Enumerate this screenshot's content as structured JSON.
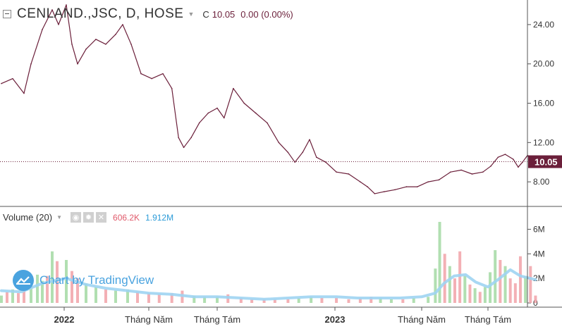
{
  "header": {
    "symbol": "CENLAND.,JSC, D, HOSE",
    "close_label": "C",
    "close_value": "10.05",
    "change": "0.00 (0.00%)"
  },
  "volume_header": {
    "label": "Volume (20)",
    "current_volume": "606.2K",
    "ma_volume": "1.912M"
  },
  "watermark": {
    "text": "Chart by TradingView"
  },
  "colors": {
    "price_line": "#6b1f3a",
    "last_price_tag": "#6b1f3a",
    "vol_up": "#a8dca8",
    "vol_down": "#f2a7ad",
    "vol_ma": "#9ed4f2",
    "grid": "#888888"
  },
  "icons": [
    "collapse-icon",
    "eye-icon",
    "gear-icon",
    "close-icon",
    "tradingview-logo-icon"
  ],
  "chart_data": {
    "type": "line",
    "x_tick_labels": [
      "2022",
      "Tháng Năm",
      "Tháng Tám",
      "2023",
      "Tháng Năm",
      "Tháng Tám"
    ],
    "x_tick_bold": [
      true,
      false,
      false,
      true,
      false,
      false
    ],
    "price_pane": {
      "ylim": [
        5.5,
        26.5
      ],
      "y_ticks": [
        8,
        12,
        16,
        20,
        24
      ],
      "y_tick_labels": [
        "8.00",
        "12.00",
        "16.00",
        "20.00",
        "24.00"
      ],
      "last_price": 10.05,
      "last_price_label": "10.05",
      "series": [
        {
          "x": "2021-10-04",
          "y": 18.0
        },
        {
          "x": "2021-10-20",
          "y": 18.5
        },
        {
          "x": "2021-11-05",
          "y": 17.0
        },
        {
          "x": "2021-11-15",
          "y": 20.0
        },
        {
          "x": "2021-12-01",
          "y": 23.5
        },
        {
          "x": "2021-12-15",
          "y": 25.5
        },
        {
          "x": "2021-12-24",
          "y": 24.0
        },
        {
          "x": "2022-01-04",
          "y": 26.0
        },
        {
          "x": "2022-01-12",
          "y": 22.0
        },
        {
          "x": "2022-01-20",
          "y": 20.0
        },
        {
          "x": "2022-02-01",
          "y": 21.5
        },
        {
          "x": "2022-02-15",
          "y": 22.5
        },
        {
          "x": "2022-03-01",
          "y": 22.0
        },
        {
          "x": "2022-03-15",
          "y": 23.0
        },
        {
          "x": "2022-03-25",
          "y": 24.0
        },
        {
          "x": "2022-04-06",
          "y": 22.0
        },
        {
          "x": "2022-04-20",
          "y": 19.0
        },
        {
          "x": "2022-05-05",
          "y": 18.5
        },
        {
          "x": "2022-05-20",
          "y": 19.0
        },
        {
          "x": "2022-06-01",
          "y": 17.5
        },
        {
          "x": "2022-06-10",
          "y": 12.5
        },
        {
          "x": "2022-06-17",
          "y": 11.5
        },
        {
          "x": "2022-06-27",
          "y": 12.5
        },
        {
          "x": "2022-07-08",
          "y": 14.0
        },
        {
          "x": "2022-07-20",
          "y": 15.0
        },
        {
          "x": "2022-08-01",
          "y": 15.5
        },
        {
          "x": "2022-08-10",
          "y": 14.5
        },
        {
          "x": "2022-08-22",
          "y": 17.5
        },
        {
          "x": "2022-09-05",
          "y": 16.0
        },
        {
          "x": "2022-09-20",
          "y": 15.0
        },
        {
          "x": "2022-10-05",
          "y": 14.0
        },
        {
          "x": "2022-10-20",
          "y": 12.0
        },
        {
          "x": "2022-11-01",
          "y": 11.0
        },
        {
          "x": "2022-11-10",
          "y": 10.0
        },
        {
          "x": "2022-11-20",
          "y": 11.0
        },
        {
          "x": "2022-11-29",
          "y": 12.3
        },
        {
          "x": "2022-12-08",
          "y": 10.5
        },
        {
          "x": "2022-12-20",
          "y": 10.0
        },
        {
          "x": "2023-01-03",
          "y": 9.0
        },
        {
          "x": "2023-01-20",
          "y": 8.8
        },
        {
          "x": "2023-02-05",
          "y": 8.0
        },
        {
          "x": "2023-02-15",
          "y": 7.5
        },
        {
          "x": "2023-02-25",
          "y": 6.8
        },
        {
          "x": "2023-03-10",
          "y": 7.0
        },
        {
          "x": "2023-03-25",
          "y": 7.2
        },
        {
          "x": "2023-04-10",
          "y": 7.5
        },
        {
          "x": "2023-04-25",
          "y": 7.5
        },
        {
          "x": "2023-05-10",
          "y": 8.0
        },
        {
          "x": "2023-05-25",
          "y": 8.2
        },
        {
          "x": "2023-06-10",
          "y": 9.0
        },
        {
          "x": "2023-06-25",
          "y": 9.2
        },
        {
          "x": "2023-07-10",
          "y": 8.8
        },
        {
          "x": "2023-07-25",
          "y": 9.0
        },
        {
          "x": "2023-08-05",
          "y": 9.6
        },
        {
          "x": "2023-08-15",
          "y": 10.5
        },
        {
          "x": "2023-08-25",
          "y": 10.8
        },
        {
          "x": "2023-09-05",
          "y": 10.3
        },
        {
          "x": "2023-09-12",
          "y": 9.5
        },
        {
          "x": "2023-09-18",
          "y": 10.0
        },
        {
          "x": "2023-09-25",
          "y": 10.7
        },
        {
          "x": "2023-10-02",
          "y": 9.9
        },
        {
          "x": "2023-10-06",
          "y": 10.05
        }
      ]
    },
    "volume_pane": {
      "ylim": [
        0,
        7
      ],
      "y_ticks": [
        0,
        2,
        4,
        6
      ],
      "y_tick_labels": [
        "0",
        "2M",
        "4M",
        "6M"
      ],
      "unit": "millions of shares",
      "bars": [
        {
          "x": "2021-10-04",
          "v": 0.6,
          "up": true
        },
        {
          "x": "2021-10-12",
          "v": 0.9,
          "up": false
        },
        {
          "x": "2021-10-20",
          "v": 1.1,
          "up": true
        },
        {
          "x": "2021-10-28",
          "v": 0.8,
          "up": false
        },
        {
          "x": "2021-11-05",
          "v": 1.3,
          "up": false
        },
        {
          "x": "2021-11-15",
          "v": 1.6,
          "up": true
        },
        {
          "x": "2021-11-24",
          "v": 2.3,
          "up": true
        },
        {
          "x": "2021-12-01",
          "v": 1.8,
          "up": true
        },
        {
          "x": "2021-12-08",
          "v": 2.2,
          "up": false
        },
        {
          "x": "2021-12-15",
          "v": 4.2,
          "up": true
        },
        {
          "x": "2021-12-22",
          "v": 3.4,
          "up": false
        },
        {
          "x": "2022-01-04",
          "v": 3.5,
          "up": true
        },
        {
          "x": "2022-01-12",
          "v": 2.6,
          "up": false
        },
        {
          "x": "2022-01-20",
          "v": 2.0,
          "up": false
        },
        {
          "x": "2022-02-01",
          "v": 1.6,
          "up": true
        },
        {
          "x": "2022-02-15",
          "v": 1.3,
          "up": true
        },
        {
          "x": "2022-03-01",
          "v": 1.1,
          "up": false
        },
        {
          "x": "2022-03-15",
          "v": 1.0,
          "up": true
        },
        {
          "x": "2022-04-01",
          "v": 1.1,
          "up": true
        },
        {
          "x": "2022-04-15",
          "v": 0.9,
          "up": false
        },
        {
          "x": "2022-05-01",
          "v": 0.8,
          "up": false
        },
        {
          "x": "2022-05-15",
          "v": 0.7,
          "up": false
        },
        {
          "x": "2022-06-01",
          "v": 0.8,
          "up": false
        },
        {
          "x": "2022-06-15",
          "v": 1.0,
          "up": false
        },
        {
          "x": "2022-07-01",
          "v": 0.6,
          "up": true
        },
        {
          "x": "2022-07-15",
          "v": 0.5,
          "up": true
        },
        {
          "x": "2022-08-01",
          "v": 0.5,
          "up": true
        },
        {
          "x": "2022-08-15",
          "v": 0.7,
          "up": false
        },
        {
          "x": "2022-09-01",
          "v": 0.4,
          "up": false
        },
        {
          "x": "2022-09-15",
          "v": 0.3,
          "up": false
        },
        {
          "x": "2022-10-01",
          "v": 0.3,
          "up": false
        },
        {
          "x": "2022-10-15",
          "v": 0.3,
          "up": false
        },
        {
          "x": "2022-11-01",
          "v": 0.3,
          "up": false
        },
        {
          "x": "2022-11-15",
          "v": 0.4,
          "up": true
        },
        {
          "x": "2022-12-01",
          "v": 0.5,
          "up": true
        },
        {
          "x": "2022-12-15",
          "v": 0.4,
          "up": false
        },
        {
          "x": "2023-01-03",
          "v": 0.4,
          "up": false
        },
        {
          "x": "2023-01-20",
          "v": 0.3,
          "up": false
        },
        {
          "x": "2023-02-05",
          "v": 0.4,
          "up": false
        },
        {
          "x": "2023-02-20",
          "v": 0.5,
          "up": false
        },
        {
          "x": "2023-03-05",
          "v": 0.4,
          "up": true
        },
        {
          "x": "2023-03-20",
          "v": 0.3,
          "up": true
        },
        {
          "x": "2023-04-05",
          "v": 0.3,
          "up": false
        },
        {
          "x": "2023-04-20",
          "v": 0.4,
          "up": true
        },
        {
          "x": "2023-05-10",
          "v": 0.5,
          "up": true
        },
        {
          "x": "2023-05-20",
          "v": 2.8,
          "up": true
        },
        {
          "x": "2023-05-26",
          "v": 6.6,
          "up": true
        },
        {
          "x": "2023-06-02",
          "v": 4.0,
          "up": false
        },
        {
          "x": "2023-06-09",
          "v": 3.0,
          "up": true
        },
        {
          "x": "2023-06-16",
          "v": 2.0,
          "up": false
        },
        {
          "x": "2023-06-23",
          "v": 4.2,
          "up": false
        },
        {
          "x": "2023-06-30",
          "v": 2.2,
          "up": true
        },
        {
          "x": "2023-07-07",
          "v": 1.5,
          "up": false
        },
        {
          "x": "2023-07-14",
          "v": 1.2,
          "up": true
        },
        {
          "x": "2023-07-21",
          "v": 0.9,
          "up": false
        },
        {
          "x": "2023-07-28",
          "v": 1.3,
          "up": true
        },
        {
          "x": "2023-08-04",
          "v": 2.5,
          "up": true
        },
        {
          "x": "2023-08-11",
          "v": 4.3,
          "up": true
        },
        {
          "x": "2023-08-18",
          "v": 3.5,
          "up": false
        },
        {
          "x": "2023-08-25",
          "v": 3.0,
          "up": true
        },
        {
          "x": "2023-09-01",
          "v": 2.0,
          "up": false
        },
        {
          "x": "2023-09-08",
          "v": 1.6,
          "up": false
        },
        {
          "x": "2023-09-15",
          "v": 3.8,
          "up": false
        },
        {
          "x": "2023-09-22",
          "v": 2.2,
          "up": true
        },
        {
          "x": "2023-09-29",
          "v": 3.0,
          "up": false
        },
        {
          "x": "2023-10-06",
          "v": 0.6,
          "up": false
        }
      ],
      "ma20": [
        {
          "x": "2021-10-04",
          "y": 1.0
        },
        {
          "x": "2021-11-01",
          "y": 0.9
        },
        {
          "x": "2021-12-01",
          "y": 1.6
        },
        {
          "x": "2022-01-04",
          "y": 2.0
        },
        {
          "x": "2022-02-01",
          "y": 1.5
        },
        {
          "x": "2022-03-01",
          "y": 1.2
        },
        {
          "x": "2022-04-01",
          "y": 1.0
        },
        {
          "x": "2022-05-01",
          "y": 0.8
        },
        {
          "x": "2022-06-01",
          "y": 0.7
        },
        {
          "x": "2022-07-01",
          "y": 0.5
        },
        {
          "x": "2022-08-01",
          "y": 0.5
        },
        {
          "x": "2022-09-01",
          "y": 0.4
        },
        {
          "x": "2022-10-01",
          "y": 0.3
        },
        {
          "x": "2022-11-01",
          "y": 0.4
        },
        {
          "x": "2022-12-01",
          "y": 0.5
        },
        {
          "x": "2023-01-03",
          "y": 0.5
        },
        {
          "x": "2023-02-01",
          "y": 0.4
        },
        {
          "x": "2023-03-01",
          "y": 0.4
        },
        {
          "x": "2023-04-01",
          "y": 0.4
        },
        {
          "x": "2023-05-01",
          "y": 0.5
        },
        {
          "x": "2023-05-20",
          "y": 0.8
        },
        {
          "x": "2023-06-01",
          "y": 1.6
        },
        {
          "x": "2023-06-15",
          "y": 2.2
        },
        {
          "x": "2023-07-01",
          "y": 2.3
        },
        {
          "x": "2023-07-15",
          "y": 1.7
        },
        {
          "x": "2023-08-01",
          "y": 1.3
        },
        {
          "x": "2023-08-15",
          "y": 1.9
        },
        {
          "x": "2023-09-01",
          "y": 2.7
        },
        {
          "x": "2023-09-15",
          "y": 2.2
        },
        {
          "x": "2023-10-06",
          "y": 1.9
        }
      ]
    }
  }
}
